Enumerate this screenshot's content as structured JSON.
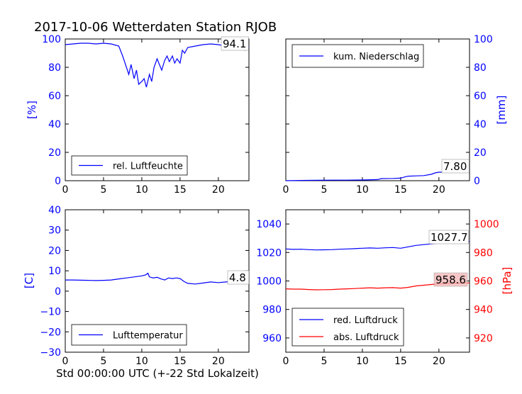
{
  "figure": {
    "title": "2017-10-06 Wetterdaten Station RJOB",
    "xlabel": "Std 00:00:00 UTC (+-22 Std Lokalzeit)"
  },
  "colors": {
    "blue": "#0000ff",
    "red": "#ff0000",
    "black": "#000000"
  },
  "chart_data": [
    {
      "type": "line",
      "name": "humidity",
      "ylabel": "[%]",
      "ylim": [
        0,
        100
      ],
      "yticks": [
        0,
        20,
        40,
        60,
        80,
        100
      ],
      "xlim": [
        0,
        24
      ],
      "xticks": [
        0,
        5,
        10,
        15,
        20
      ],
      "legend": "lower-left",
      "last_value_label": "94.1",
      "series": [
        {
          "name": "rel. Luftfeuchte",
          "color": "#0000ff",
          "x": [
            0,
            1,
            2,
            3,
            4,
            5,
            6,
            7,
            7.5,
            8,
            8.3,
            8.6,
            9,
            9.3,
            9.6,
            10,
            10.3,
            10.6,
            11,
            11.3,
            11.6,
            12,
            12.3,
            12.6,
            13,
            13.3,
            13.6,
            14,
            14.3,
            14.6,
            15,
            15.3,
            15.6,
            16,
            17,
            18,
            19,
            20,
            21,
            21.5,
            22,
            22.5,
            23,
            23.5,
            24
          ],
          "y": [
            96,
            96.5,
            97,
            97,
            96.5,
            97,
            96.5,
            95,
            88,
            80,
            75,
            82,
            72,
            78,
            68,
            70,
            72,
            66,
            75,
            70,
            80,
            86,
            82,
            78,
            85,
            88,
            84,
            88,
            83,
            86,
            83,
            92,
            90,
            94,
            95,
            96,
            96.5,
            96,
            95,
            96,
            94,
            96,
            93,
            92,
            94.1
          ]
        }
      ]
    },
    {
      "type": "line",
      "name": "precipitation",
      "ylabel": "[mm]",
      "ylim": [
        0,
        100
      ],
      "yticks": [
        0,
        20,
        40,
        60,
        80,
        100
      ],
      "xlim": [
        0,
        24
      ],
      "xticks": [
        0,
        5,
        10,
        15,
        20
      ],
      "legend": "upper-left",
      "last_value_label": "7.80",
      "series": [
        {
          "name": "kum. Niederschlag",
          "color": "#0000ff",
          "x": [
            0,
            2,
            4,
            6,
            8,
            10,
            12,
            12.5,
            14,
            15,
            15.5,
            16,
            17,
            18,
            19,
            19.5,
            20,
            21,
            22,
            23,
            24
          ],
          "y": [
            0,
            0.2,
            0.3,
            0.4,
            0.4,
            0.5,
            0.8,
            1.5,
            1.6,
            1.8,
            2.6,
            3.2,
            3.4,
            3.6,
            4.5,
            5.5,
            6.0,
            6.0,
            7.6,
            7.7,
            7.8
          ]
        }
      ]
    },
    {
      "type": "line",
      "name": "temperature",
      "ylabel": "[C]",
      "ylim": [
        -30,
        40
      ],
      "yticks": [
        -30,
        -20,
        -10,
        0,
        10,
        20,
        30,
        40
      ],
      "xlim": [
        0,
        24
      ],
      "xticks": [
        0,
        5,
        10,
        15,
        20
      ],
      "legend": "lower-left",
      "last_value_label": "4.8",
      "series": [
        {
          "name": "Lufttemperatur",
          "color": "#0000ff",
          "x": [
            0,
            1,
            2,
            3,
            4,
            5,
            6,
            7,
            8,
            9,
            10,
            10.5,
            10.8,
            11,
            11.5,
            12,
            12.5,
            13,
            13.5,
            14,
            14.5,
            15,
            15.5,
            16,
            17,
            18,
            19,
            20,
            21,
            22,
            23,
            24
          ],
          "y": [
            5.5,
            5.5,
            5.4,
            5.3,
            5.2,
            5.3,
            5.5,
            6,
            6.5,
            7,
            7.5,
            8,
            8.8,
            7,
            6.5,
            6.8,
            6,
            5.5,
            6.5,
            6.2,
            6.5,
            6.2,
            4.8,
            3.8,
            3.5,
            4,
            4.5,
            4.2,
            4.5,
            4.8,
            4.7,
            4.8
          ]
        }
      ]
    },
    {
      "type": "line",
      "name": "pressure",
      "ylabel_right": "[hPa]",
      "ylim": [
        950,
        1050
      ],
      "yticks": [
        960,
        980,
        1000,
        1020,
        1040
      ],
      "ylim_right": [
        910,
        1010
      ],
      "yticks_right": [
        920,
        940,
        960,
        980,
        1000
      ],
      "xlim": [
        0,
        24
      ],
      "xticks": [
        0,
        5,
        10,
        15,
        20
      ],
      "legend": "lower-left",
      "last_value_label_1": "1027.7",
      "last_value_label_2": "958.6",
      "series": [
        {
          "name": "red. Luftdruck",
          "color": "#0000ff",
          "axis": "left",
          "x": [
            0,
            1,
            2,
            3,
            4,
            5,
            6,
            7,
            8,
            9,
            10,
            11,
            12,
            13,
            14,
            15,
            16,
            17,
            18,
            19,
            20,
            21,
            22,
            23,
            24
          ],
          "y": [
            1022.5,
            1022.2,
            1022.3,
            1022,
            1021.8,
            1021.9,
            1022,
            1022.3,
            1022.5,
            1022.7,
            1023,
            1023.2,
            1023,
            1023.3,
            1023.5,
            1023,
            1024,
            1025,
            1025.5,
            1026,
            1026.5,
            1027,
            1027.3,
            1027.5,
            1027.7
          ]
        },
        {
          "name": "abs. Luftdruck",
          "color": "#ff0000",
          "axis": "right",
          "x": [
            0,
            1,
            2,
            3,
            4,
            5,
            6,
            7,
            8,
            9,
            10,
            11,
            12,
            13,
            14,
            15,
            16,
            17,
            18,
            19,
            20,
            21,
            22,
            23,
            24
          ],
          "y": [
            954.5,
            954.3,
            954.3,
            954,
            953.8,
            953.9,
            954,
            954.3,
            954.5,
            954.7,
            955,
            955.2,
            955,
            955.2,
            955.3,
            955,
            955.5,
            956.5,
            957,
            957.5,
            958,
            958.2,
            958.4,
            958.5,
            958.6
          ]
        }
      ]
    }
  ]
}
